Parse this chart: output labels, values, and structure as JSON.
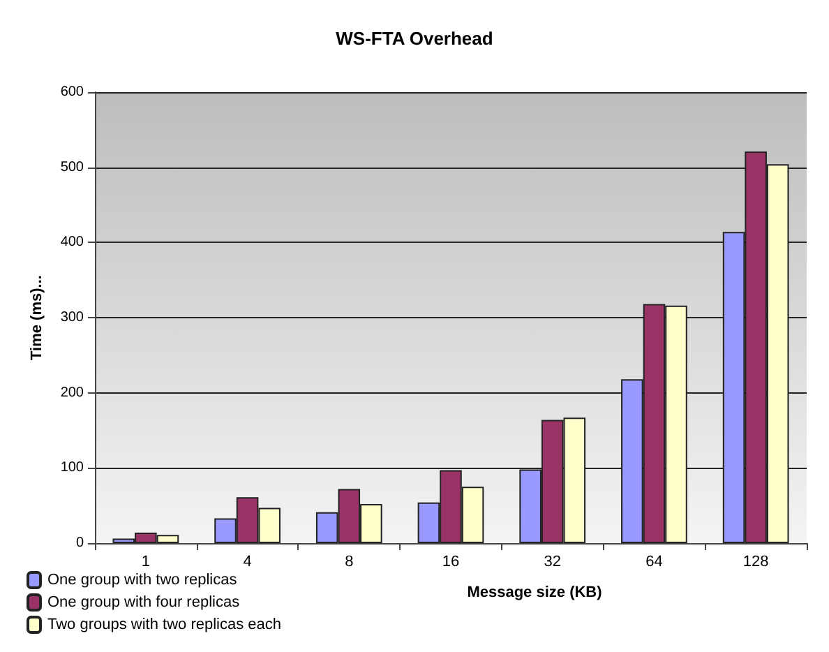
{
  "chart_data": {
    "type": "bar",
    "title": "WS-FTA Overhead",
    "xlabel": "Message size (KB)",
    "ylabel": "Time (ms)...",
    "categories": [
      "1",
      "4",
      "8",
      "16",
      "32",
      "64",
      "128"
    ],
    "series": [
      {
        "name": "One group with two replicas",
        "color": "#9999ff",
        "values": [
          6,
          33,
          41,
          54,
          98,
          218,
          414
        ]
      },
      {
        "name": "One group with four replicas",
        "color": "#993366",
        "values": [
          14,
          61,
          72,
          97,
          164,
          318,
          521
        ]
      },
      {
        "name": "Two groups with two replicas each",
        "color": "#ffffcc",
        "values": [
          11,
          47,
          52,
          75,
          167,
          316,
          504
        ]
      }
    ],
    "ylim": [
      0,
      600
    ],
    "yticks": [
      0,
      100,
      200,
      300,
      400,
      500,
      600
    ],
    "grid": "y",
    "legend": "bottom left"
  }
}
